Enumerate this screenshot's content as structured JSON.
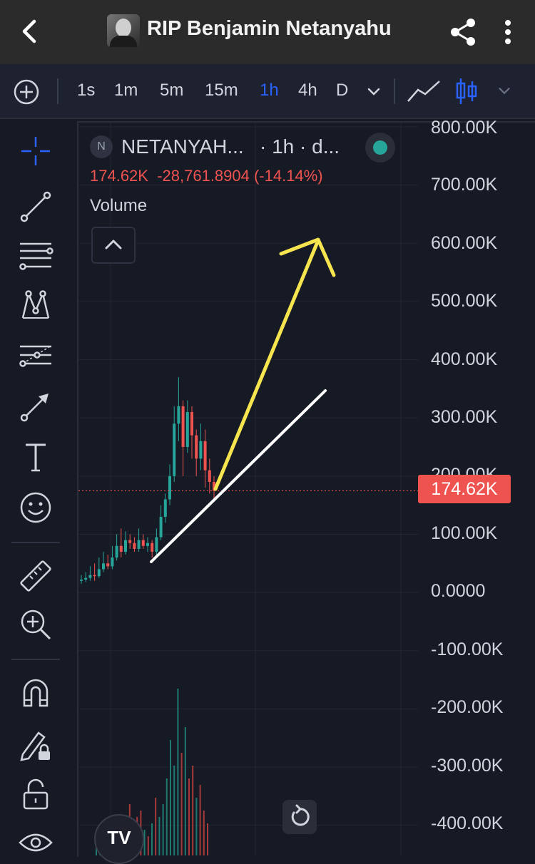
{
  "header": {
    "title": "RIP Benjamin Netanyahu",
    "back_icon": "back-arrow-icon",
    "share_icon": "share-icon",
    "more_icon": "more-vertical-icon"
  },
  "toolbar": {
    "timeframes": [
      "1s",
      "1m",
      "5m",
      "15m",
      "1h",
      "4h",
      "D"
    ],
    "active_timeframe": "1h",
    "accent": "#2962ff"
  },
  "legend": {
    "badge": "N",
    "symbol": "NETANYAH...",
    "meta": "· 1h · d...",
    "price": "174.62K",
    "change": "-28,761.8904 (-14.14%)",
    "volume_label": "Volume",
    "status_color": "#26a69a"
  },
  "price_axis": {
    "labels": [
      "800.00K",
      "700.00K",
      "600.00K",
      "500.00K",
      "400.00K",
      "300.00K",
      "200.00K",
      "100.00K",
      "0.0000",
      "-100.00K",
      "-200.00K",
      "-300.00K",
      "-400.00K"
    ],
    "current_price": "174.62K",
    "current_color": "#ef5350"
  },
  "branding": {
    "logo_text": "TV"
  },
  "chart_data": {
    "type": "candlestick",
    "ylim": [
      -420000,
      800000
    ],
    "current_price": 174620,
    "candles": [
      {
        "o": 20000,
        "c": 22000,
        "h": 30000,
        "l": 15000
      },
      {
        "o": 22000,
        "c": 25000,
        "h": 35000,
        "l": 18000
      },
      {
        "o": 25000,
        "c": 30000,
        "h": 45000,
        "l": 20000
      },
      {
        "o": 30000,
        "c": 28000,
        "h": 50000,
        "l": 20000
      },
      {
        "o": 28000,
        "c": 40000,
        "h": 60000,
        "l": 25000
      },
      {
        "o": 40000,
        "c": 50000,
        "h": 70000,
        "l": 35000
      },
      {
        "o": 50000,
        "c": 45000,
        "h": 65000,
        "l": 40000
      },
      {
        "o": 45000,
        "c": 60000,
        "h": 80000,
        "l": 40000
      },
      {
        "o": 60000,
        "c": 80000,
        "h": 100000,
        "l": 55000
      },
      {
        "o": 80000,
        "c": 70000,
        "h": 110000,
        "l": 60000
      },
      {
        "o": 70000,
        "c": 90000,
        "h": 105000,
        "l": 65000
      },
      {
        "o": 90000,
        "c": 85000,
        "h": 100000,
        "l": 75000
      },
      {
        "o": 85000,
        "c": 75000,
        "h": 95000,
        "l": 70000
      },
      {
        "o": 75000,
        "c": 90000,
        "h": 110000,
        "l": 70000
      },
      {
        "o": 90000,
        "c": 80000,
        "h": 100000,
        "l": 75000
      },
      {
        "o": 80000,
        "c": 85000,
        "h": 95000,
        "l": 70000
      },
      {
        "o": 85000,
        "c": 70000,
        "h": 90000,
        "l": 60000
      },
      {
        "o": 70000,
        "c": 95000,
        "h": 110000,
        "l": 65000
      },
      {
        "o": 95000,
        "c": 130000,
        "h": 150000,
        "l": 90000
      },
      {
        "o": 130000,
        "c": 160000,
        "h": 170000,
        "l": 120000
      },
      {
        "o": 160000,
        "c": 200000,
        "h": 220000,
        "l": 150000
      },
      {
        "o": 200000,
        "c": 290000,
        "h": 320000,
        "l": 190000
      },
      {
        "o": 290000,
        "c": 320000,
        "h": 370000,
        "l": 260000
      },
      {
        "o": 320000,
        "c": 250000,
        "h": 330000,
        "l": 200000
      },
      {
        "o": 250000,
        "c": 310000,
        "h": 330000,
        "l": 240000
      },
      {
        "o": 310000,
        "c": 270000,
        "h": 320000,
        "l": 230000
      },
      {
        "o": 270000,
        "c": 230000,
        "h": 280000,
        "l": 200000
      },
      {
        "o": 230000,
        "c": 260000,
        "h": 290000,
        "l": 210000
      },
      {
        "o": 260000,
        "c": 210000,
        "h": 280000,
        "l": 180000
      },
      {
        "o": 210000,
        "c": 190000,
        "h": 230000,
        "l": 170000
      },
      {
        "o": 190000,
        "c": 174620,
        "h": 200000,
        "l": 160000
      }
    ],
    "volume": [
      2,
      3,
      2,
      5,
      3,
      4,
      6,
      5,
      4,
      8,
      5,
      6,
      7,
      4,
      3,
      5,
      9,
      6,
      8,
      12,
      18,
      14,
      26,
      16,
      20,
      12,
      14,
      9,
      11,
      7,
      5
    ],
    "annotations": [
      "yellow-arrow",
      "white-trendline"
    ]
  }
}
